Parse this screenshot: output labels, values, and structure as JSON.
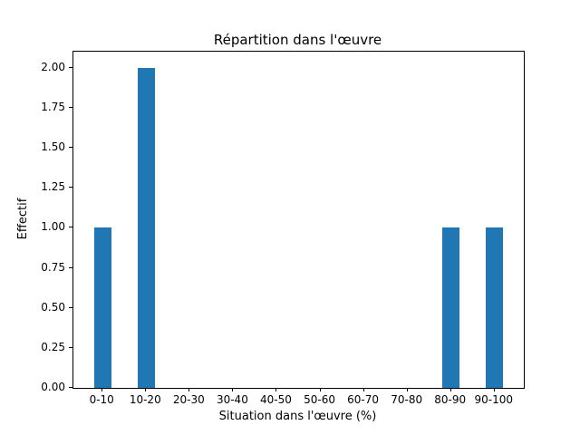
{
  "chart_data": {
    "type": "bar",
    "title": "Répartition dans l'œuvre",
    "xlabel": "Situation dans l'œuvre (%)",
    "ylabel": "Effectif",
    "categories": [
      "0-10",
      "10-20",
      "20-30",
      "30-40",
      "40-50",
      "50-60",
      "60-70",
      "70-80",
      "80-90",
      "90-100"
    ],
    "values": [
      1,
      2,
      0,
      0,
      0,
      0,
      0,
      0,
      1,
      1
    ],
    "yticks": [
      "0.00",
      "0.25",
      "0.50",
      "0.75",
      "1.00",
      "1.25",
      "1.50",
      "1.75",
      "2.00"
    ],
    "ylim": [
      0,
      2.1
    ],
    "xlim": [
      -0.67,
      9.67
    ],
    "bar_width": 0.4,
    "bar_color": "#1f77b4",
    "grid": false,
    "legend": null
  }
}
